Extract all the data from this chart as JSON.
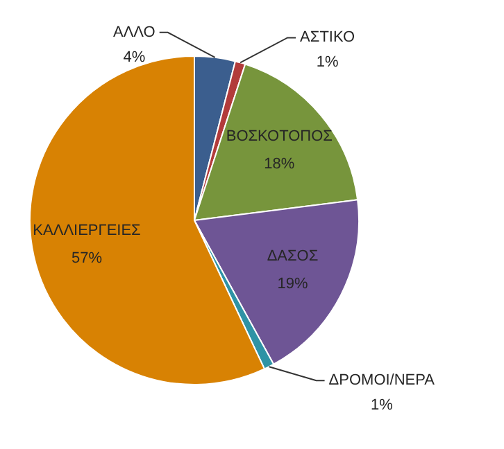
{
  "chart_data": {
    "type": "pie",
    "categories": [
      "ΑΛΛΟ",
      "ΑΣΤΙΚΟ",
      "ΒΟΣΚΟΤΟΠΟΣ",
      "ΔΑΣΟΣ",
      "ΔΡΟΜΟΙ/ΝΕΡΑ",
      "ΚΑΛΛΙΕΡΓΕΙΕΣ"
    ],
    "values": [
      4,
      1,
      18,
      19,
      1,
      57
    ],
    "value_labels": [
      "4%",
      "1%",
      "18%",
      "19%",
      "1%",
      "57%"
    ],
    "colors": [
      "#3b5e8e",
      "#b23b3b",
      "#77953c",
      "#6e5595",
      "#2e93a5",
      "#d88203"
    ],
    "legend": false
  }
}
